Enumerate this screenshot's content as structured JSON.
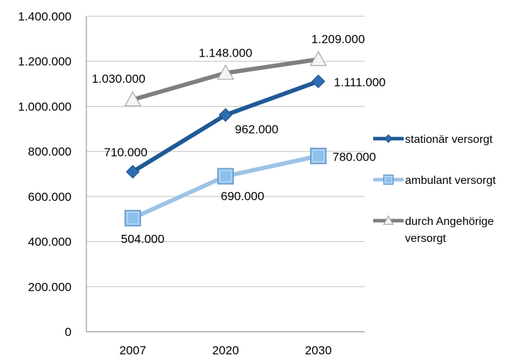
{
  "chart_data": {
    "type": "line",
    "categories": [
      "2007",
      "2020",
      "2030"
    ],
    "ylim": [
      0,
      1400000
    ],
    "ytick_step": 200000,
    "yticks": [
      "0",
      "200.000",
      "400.000",
      "600.000",
      "800.000",
      "1.000.000",
      "1.200.000",
      "1.400.000"
    ],
    "grid": true,
    "legend_position": "right",
    "series": [
      {
        "name": "stationär versorgt",
        "values": [
          710000,
          962000,
          1111000
        ],
        "labels": [
          "710.000",
          "962.000",
          "1.111.000"
        ],
        "color": "#1f5a96",
        "marker": "diamond"
      },
      {
        "name": "ambulant versorgt",
        "values": [
          504000,
          690000,
          780000
        ],
        "labels": [
          "504.000",
          "690.000",
          "780.000"
        ],
        "color": "#9dc3e6",
        "marker": "square"
      },
      {
        "name": "durch Angehörige versorgt",
        "name_lines": [
          "durch Angehörige",
          "versorgt"
        ],
        "values": [
          1030000,
          1148000,
          1209000
        ],
        "labels": [
          "1.030.000",
          "1.148.000",
          "1.209.000"
        ],
        "color": "#7f7f7f",
        "marker": "triangle"
      }
    ]
  }
}
